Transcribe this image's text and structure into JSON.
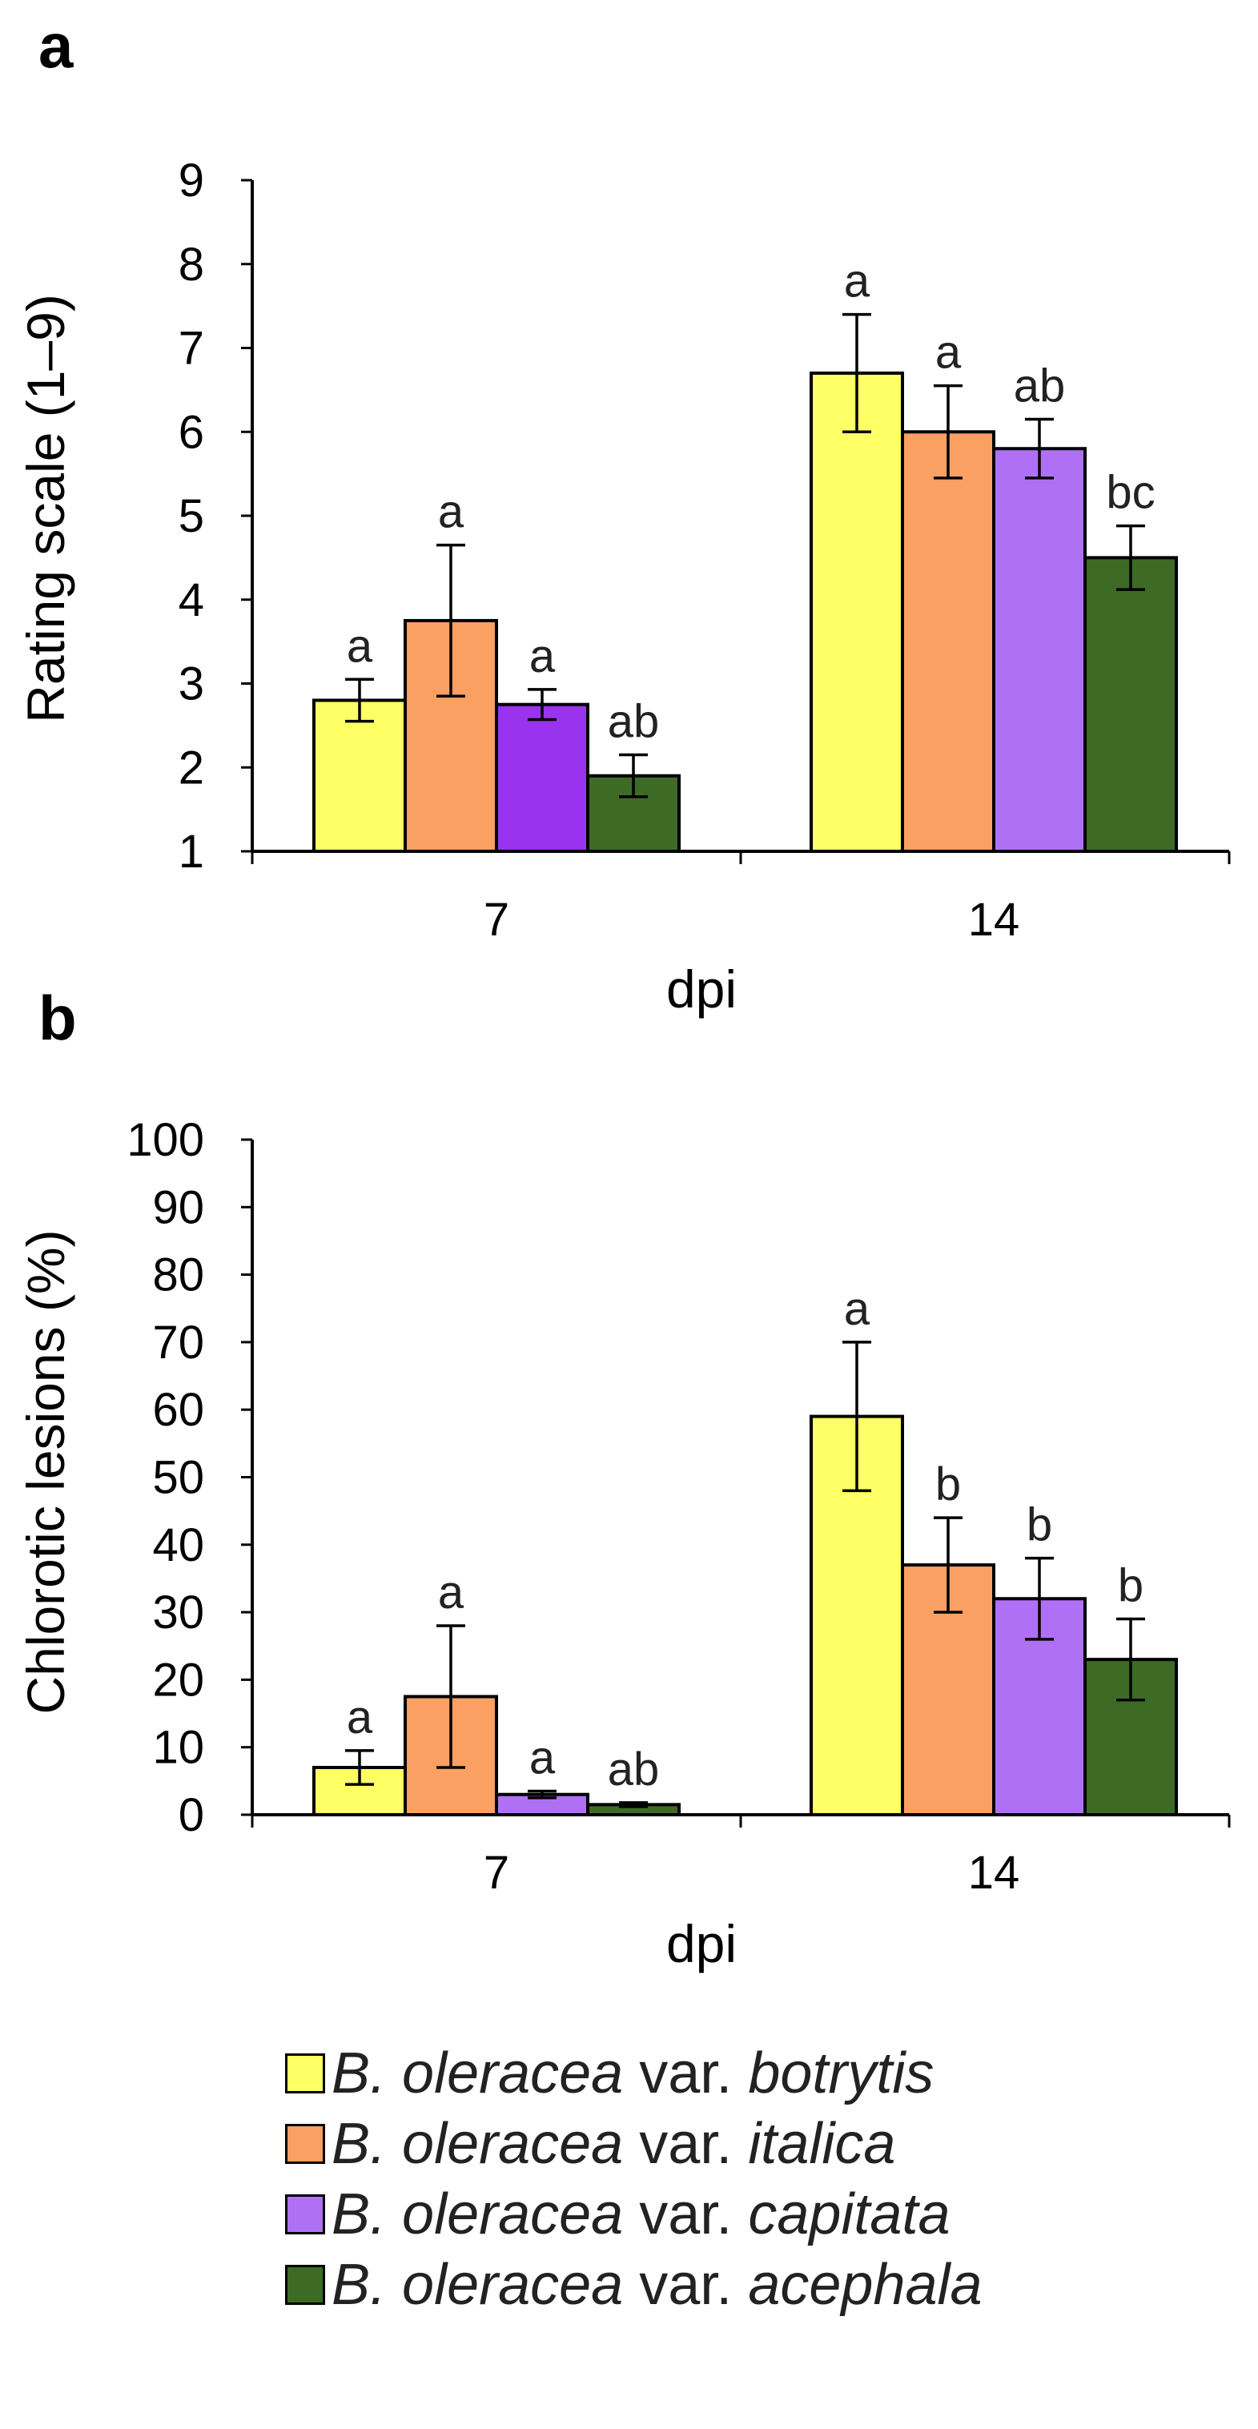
{
  "panels": [
    {
      "panel_label": "a",
      "y_tick_labels": [
        "1",
        "2",
        "3",
        "4",
        "5",
        "6",
        "7",
        "8",
        "9"
      ],
      "x_tick_labels": [
        "7",
        "14"
      ],
      "x_label": "dpi",
      "y_label": "Rating scale (1–9)"
    },
    {
      "panel_label": "b",
      "y_tick_labels": [
        "0",
        "10",
        "20",
        "30",
        "40",
        "50",
        "60",
        "70",
        "80",
        "90",
        "100"
      ],
      "x_tick_labels": [
        "7",
        "14"
      ],
      "x_label": "dpi",
      "y_label": "Chlorotic lesions (%)"
    }
  ],
  "legend": [
    {
      "species": "B. oleracea",
      "var": "var.",
      "variety": "botrytis",
      "color": "#ffff66"
    },
    {
      "species": "B. oleracea",
      "var": "var.",
      "variety": "italica",
      "color": "#f9a062"
    },
    {
      "species": "B. oleracea",
      "var": "var.",
      "variety": "capitata",
      "color": "#b070f5"
    },
    {
      "species": "B. oleracea",
      "var": "var.",
      "variety": "acephala",
      "color": "#3d6b26"
    }
  ],
  "chart_data": [
    {
      "type": "bar",
      "panel": "a",
      "categories": [
        "7",
        "14"
      ],
      "xlabel": "dpi",
      "ylabel": "Rating scale (1–9)",
      "ylim": [
        1,
        9
      ],
      "grid": false,
      "series": [
        {
          "name": "B. oleracea var. botrytis",
          "color": "#ffff66",
          "values": [
            2.8,
            6.7
          ],
          "errors": [
            0.25,
            0.7
          ],
          "letters": [
            "a",
            "a"
          ]
        },
        {
          "name": "B. oleracea var. italica",
          "color": "#f9a062",
          "values": [
            3.75,
            6.0
          ],
          "errors": [
            0.9,
            0.55
          ],
          "letters": [
            "a",
            "a"
          ]
        },
        {
          "name": "B. oleracea var. capitata",
          "colors": [
            "#9a33ee",
            "#b070f5"
          ],
          "color": "#b070f5",
          "values": [
            2.75,
            5.8
          ],
          "errors": [
            0.18,
            0.35
          ],
          "letters": [
            "a",
            "ab"
          ]
        },
        {
          "name": "B. oleracea var. acephala",
          "color": "#3d6b26",
          "values": [
            1.9,
            4.5
          ],
          "errors": [
            0.25,
            0.38
          ],
          "letters": [
            "ab",
            "bc"
          ]
        }
      ]
    },
    {
      "type": "bar",
      "panel": "b",
      "categories": [
        "7",
        "14"
      ],
      "xlabel": "dpi",
      "ylabel": "Chlorotic lesions (%)",
      "ylim": [
        0,
        100
      ],
      "grid": false,
      "series": [
        {
          "name": "B. oleracea var. botrytis",
          "color": "#ffff66",
          "values": [
            7,
            59
          ],
          "errors": [
            2.5,
            11
          ],
          "letters": [
            "a",
            "a"
          ]
        },
        {
          "name": "B. oleracea var. italica",
          "color": "#f9a062",
          "values": [
            17.5,
            37
          ],
          "errors": [
            10.5,
            7
          ],
          "letters": [
            "a",
            "b"
          ]
        },
        {
          "name": "B. oleracea var. capitata",
          "color": "#b070f5",
          "values": [
            3,
            32
          ],
          "errors": [
            0.5,
            6
          ],
          "letters": [
            "a",
            "b"
          ]
        },
        {
          "name": "B. oleracea var. acephala",
          "color": "#3d6b26",
          "values": [
            1.5,
            23
          ],
          "errors": [
            0.3,
            6
          ],
          "letters": [
            "ab",
            "b"
          ]
        }
      ]
    }
  ]
}
